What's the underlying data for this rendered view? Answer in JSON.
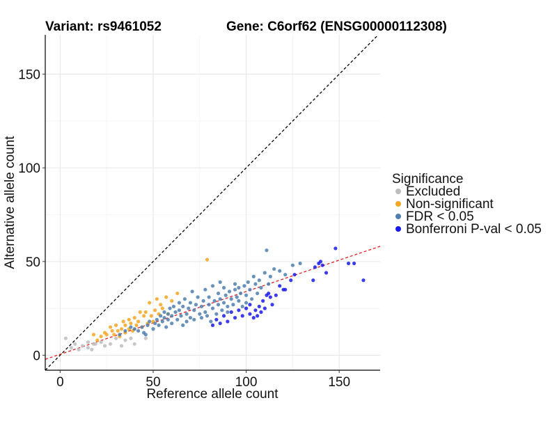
{
  "chart_data": {
    "type": "scatter",
    "title_left": "Variant: rs9461052",
    "title_right": "Gene: C6orf62 (ENSG00000112308)",
    "xlabel": "Reference allele count",
    "ylabel": "Alternative allele count",
    "xlim": [
      -8,
      172
    ],
    "ylim": [
      -8,
      171
    ],
    "xticks": [
      0,
      50,
      100,
      150
    ],
    "yticks": [
      0,
      50,
      100,
      150
    ],
    "grid": true,
    "legend": {
      "title": "Significance",
      "position": "right",
      "entries": [
        {
          "label": "Excluded",
          "color": "#bdbdbd"
        },
        {
          "label": "Non-significant",
          "color": "#f5a623"
        },
        {
          "label": "FDR < 0.05",
          "color": "#4f7fae"
        },
        {
          "label": "Bonferroni P-val < 0.05",
          "color": "#1a1aee"
        }
      ]
    },
    "reference_lines": [
      {
        "name": "identity",
        "slope": 1,
        "intercept": 0,
        "color": "#000000",
        "dash": true
      },
      {
        "name": "fit",
        "slope": 0.335,
        "intercept": 0.5,
        "color": "#e41a1c",
        "dash": true
      }
    ],
    "series": [
      {
        "name": "Excluded",
        "color": "#bdbdbd",
        "points": [
          [
            3,
            9
          ],
          [
            6,
            4
          ],
          [
            8,
            6
          ],
          [
            10,
            3
          ],
          [
            12,
            5
          ],
          [
            15,
            7
          ],
          [
            15,
            4
          ],
          [
            17,
            3
          ],
          [
            18,
            6
          ],
          [
            19,
            6
          ],
          [
            22,
            7
          ],
          [
            24,
            5
          ],
          [
            27,
            6
          ],
          [
            30,
            9
          ],
          [
            33,
            5
          ],
          [
            35,
            8
          ],
          [
            38,
            9
          ],
          [
            40,
            6
          ],
          [
            46,
            9
          ]
        ]
      },
      {
        "name": "Non-significant",
        "color": "#f5a623",
        "points": [
          [
            18,
            11
          ],
          [
            20,
            8
          ],
          [
            22,
            10
          ],
          [
            24,
            12
          ],
          [
            25,
            11
          ],
          [
            27,
            15
          ],
          [
            28,
            13
          ],
          [
            29,
            11
          ],
          [
            30,
            16
          ],
          [
            31,
            13
          ],
          [
            32,
            10
          ],
          [
            33,
            14
          ],
          [
            34,
            18
          ],
          [
            35,
            16
          ],
          [
            35,
            12
          ],
          [
            37,
            14
          ],
          [
            37,
            19
          ],
          [
            38,
            17
          ],
          [
            39,
            13
          ],
          [
            40,
            20
          ],
          [
            41,
            16
          ],
          [
            42,
            18
          ],
          [
            43,
            23
          ],
          [
            44,
            15
          ],
          [
            45,
            21
          ],
          [
            46,
            23
          ],
          [
            47,
            17
          ],
          [
            48,
            28
          ],
          [
            49,
            21
          ],
          [
            50,
            18
          ],
          [
            51,
            24
          ],
          [
            52,
            30
          ],
          [
            53,
            22
          ],
          [
            54,
            27
          ],
          [
            55,
            25
          ],
          [
            57,
            31
          ],
          [
            58,
            22
          ],
          [
            60,
            29
          ],
          [
            63,
            33
          ],
          [
            79,
            51
          ]
        ]
      },
      {
        "name": "FDR < 0.05",
        "color": "#4f7fae",
        "points": [
          [
            32,
            11
          ],
          [
            35,
            13
          ],
          [
            38,
            15
          ],
          [
            40,
            14
          ],
          [
            42,
            13
          ],
          [
            44,
            15
          ],
          [
            45,
            12
          ],
          [
            46,
            11
          ],
          [
            47,
            16
          ],
          [
            48,
            18
          ],
          [
            50,
            14
          ],
          [
            51,
            17
          ],
          [
            52,
            19
          ],
          [
            53,
            16
          ],
          [
            54,
            21
          ],
          [
            55,
            18
          ],
          [
            56,
            20
          ],
          [
            56,
            23
          ],
          [
            57,
            15
          ],
          [
            58,
            19
          ],
          [
            58,
            22
          ],
          [
            59,
            25
          ],
          [
            60,
            17
          ],
          [
            60,
            21
          ],
          [
            61,
            26
          ],
          [
            62,
            23
          ],
          [
            63,
            19
          ],
          [
            64,
            24
          ],
          [
            64,
            28
          ],
          [
            65,
            21
          ],
          [
            66,
            16
          ],
          [
            66,
            26
          ],
          [
            67,
            30
          ],
          [
            68,
            22
          ],
          [
            68,
            18
          ],
          [
            69,
            25
          ],
          [
            70,
            20
          ],
          [
            70,
            28
          ],
          [
            71,
            34
          ],
          [
            72,
            24
          ],
          [
            72,
            19
          ],
          [
            73,
            27
          ],
          [
            74,
            31
          ],
          [
            75,
            22
          ],
          [
            76,
            20
          ],
          [
            76,
            26
          ],
          [
            77,
            29
          ],
          [
            78,
            35
          ],
          [
            78,
            23
          ],
          [
            79,
            21
          ],
          [
            80,
            27
          ],
          [
            80,
            31
          ],
          [
            81,
            18
          ],
          [
            82,
            25
          ],
          [
            82,
            37
          ],
          [
            83,
            29
          ],
          [
            84,
            22
          ],
          [
            85,
            33
          ],
          [
            85,
            27
          ],
          [
            86,
            39
          ],
          [
            86,
            30
          ],
          [
            87,
            24
          ],
          [
            88,
            28
          ],
          [
            88,
            36
          ],
          [
            89,
            32
          ],
          [
            90,
            26
          ],
          [
            90,
            23
          ],
          [
            91,
            34
          ],
          [
            92,
            30
          ],
          [
            93,
            27
          ],
          [
            94,
            35
          ],
          [
            94,
            38
          ],
          [
            95,
            31
          ],
          [
            96,
            29
          ],
          [
            96,
            36
          ],
          [
            97,
            33
          ],
          [
            98,
            26
          ],
          [
            99,
            37
          ],
          [
            100,
            32
          ],
          [
            100,
            28
          ],
          [
            101,
            39
          ],
          [
            102,
            35
          ],
          [
            103,
            30
          ],
          [
            104,
            42
          ],
          [
            105,
            38
          ],
          [
            106,
            33
          ],
          [
            107,
            40
          ],
          [
            108,
            36
          ],
          [
            110,
            44
          ],
          [
            112,
            38
          ],
          [
            113,
            42
          ],
          [
            115,
            46
          ],
          [
            118,
            45
          ],
          [
            121,
            43
          ],
          [
            125,
            48
          ],
          [
            129,
            49
          ],
          [
            111,
            56
          ]
        ]
      },
      {
        "name": "Bonferroni P-val < 0.05",
        "color": "#1a1aee",
        "points": [
          [
            82,
            16
          ],
          [
            84,
            19
          ],
          [
            86,
            17
          ],
          [
            88,
            21
          ],
          [
            90,
            18
          ],
          [
            92,
            23
          ],
          [
            94,
            20
          ],
          [
            96,
            24
          ],
          [
            98,
            21
          ],
          [
            100,
            25
          ],
          [
            102,
            27
          ],
          [
            102,
            22
          ],
          [
            104,
            20
          ],
          [
            105,
            24
          ],
          [
            106,
            21
          ],
          [
            107,
            26
          ],
          [
            108,
            23
          ],
          [
            109,
            29
          ],
          [
            110,
            25
          ],
          [
            111,
            32
          ],
          [
            112,
            33
          ],
          [
            113,
            31
          ],
          [
            114,
            27
          ],
          [
            116,
            32
          ],
          [
            118,
            37
          ],
          [
            120,
            35
          ],
          [
            121,
            35
          ],
          [
            124,
            40
          ],
          [
            126,
            43
          ],
          [
            136,
            40
          ],
          [
            137,
            47
          ],
          [
            139,
            49
          ],
          [
            140,
            50
          ],
          [
            141,
            48
          ],
          [
            143,
            44
          ],
          [
            148,
            57
          ],
          [
            155,
            49
          ],
          [
            158,
            49
          ],
          [
            163,
            40
          ]
        ]
      }
    ]
  }
}
